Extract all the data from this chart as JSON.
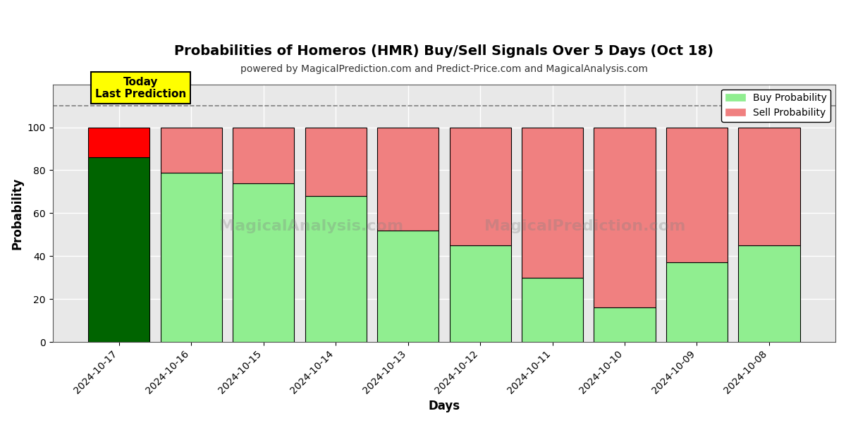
{
  "title": "Probabilities of Homeros (HMR) Buy/Sell Signals Over 5 Days (Oct 18)",
  "subtitle": "powered by MagicalPrediction.com and Predict-Price.com and MagicalAnalysis.com",
  "xlabel": "Days",
  "ylabel": "Probability",
  "dates": [
    "2024-10-17",
    "2024-10-16",
    "2024-10-15",
    "2024-10-14",
    "2024-10-13",
    "2024-10-12",
    "2024-10-11",
    "2024-10-10",
    "2024-10-09",
    "2024-10-08"
  ],
  "buy_values": [
    86,
    79,
    74,
    68,
    52,
    45,
    30,
    16,
    37,
    45
  ],
  "sell_values": [
    14,
    21,
    26,
    32,
    48,
    55,
    70,
    84,
    63,
    55
  ],
  "today_buy_color": "#006400",
  "today_sell_color": "#FF0000",
  "buy_color": "#90EE90",
  "sell_color": "#F08080",
  "today_annotation": "Today\nLast Prediction",
  "watermark_text1": "MagicalAnalysis.com",
  "watermark_text2": "MagicalPrediction.com",
  "ylim": [
    0,
    120
  ],
  "yticks": [
    0,
    20,
    40,
    60,
    80,
    100
  ],
  "dashed_line_y": 110,
  "legend_buy_label": "Buy Probability",
  "legend_sell_label": "Sell Probability",
  "bar_width": 0.85,
  "plot_bg_color": "#e8e8e8",
  "fig_bg_color": "#ffffff",
  "grid_color": "#ffffff"
}
